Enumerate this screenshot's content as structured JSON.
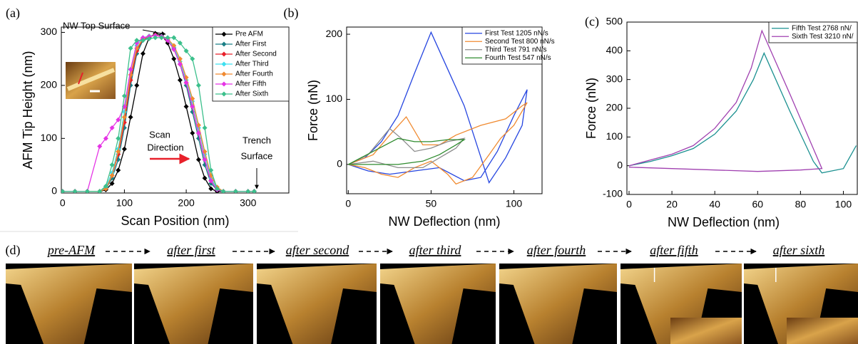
{
  "chart_data": [
    {
      "type": "line",
      "panel": "(a)",
      "xlabel": "Scan Position (nm)",
      "ylabel": "AFM Tip Height (nm)",
      "x": [
        0,
        20,
        40,
        60,
        70,
        80,
        90,
        100,
        110,
        120,
        130,
        140,
        150,
        160,
        170,
        180,
        190,
        200,
        210,
        220,
        230,
        240,
        250,
        260,
        280,
        300,
        310
      ],
      "series": [
        {
          "name": "Pre AFM",
          "color": "#000000",
          "values": [
            0,
            0,
            0,
            0,
            3,
            15,
            40,
            80,
            140,
            200,
            260,
            290,
            298,
            295,
            280,
            250,
            210,
            160,
            110,
            60,
            25,
            5,
            0,
            0,
            0,
            0,
            0
          ]
        },
        {
          "name": "After First",
          "color": "#1b7f86",
          "values": [
            0,
            0,
            0,
            0,
            5,
            25,
            60,
            120,
            200,
            260,
            285,
            292,
            295,
            293,
            288,
            270,
            240,
            200,
            150,
            100,
            50,
            15,
            3,
            0,
            0,
            0,
            0
          ]
        },
        {
          "name": "After Second",
          "color": "#e8202a",
          "values": [
            0,
            0,
            0,
            0,
            5,
            30,
            70,
            130,
            210,
            265,
            288,
            293,
            295,
            292,
            285,
            268,
            240,
            205,
            160,
            110,
            60,
            20,
            5,
            0,
            0,
            0,
            0
          ]
        },
        {
          "name": "After Third",
          "color": "#3fe0f0",
          "values": [
            0,
            0,
            0,
            0,
            8,
            35,
            80,
            150,
            230,
            275,
            290,
            293,
            294,
            292,
            287,
            272,
            245,
            210,
            170,
            120,
            70,
            25,
            5,
            0,
            0,
            0,
            0
          ]
        },
        {
          "name": "After Fourth",
          "color": "#f08a30",
          "values": [
            0,
            0,
            0,
            0,
            5,
            30,
            75,
            140,
            220,
            270,
            288,
            292,
            294,
            292,
            288,
            275,
            250,
            215,
            175,
            125,
            75,
            30,
            8,
            0,
            0,
            0,
            0
          ]
        },
        {
          "name": "After Fifth",
          "color": "#e533e5",
          "values": [
            0,
            0,
            0,
            85,
            100,
            120,
            135,
            160,
            230,
            280,
            290,
            292,
            294,
            292,
            285,
            268,
            240,
            205,
            160,
            110,
            60,
            20,
            3,
            0,
            0,
            0,
            0
          ]
        },
        {
          "name": "After Sixth",
          "color": "#3cc08c",
          "values": [
            0,
            0,
            0,
            0,
            10,
            50,
            100,
            180,
            270,
            285,
            285,
            288,
            290,
            290,
            290,
            290,
            280,
            265,
            250,
            200,
            120,
            40,
            5,
            0,
            0,
            0,
            0
          ]
        }
      ],
      "xlim": [
        -2,
        366
      ],
      "ylim": [
        -3,
        310
      ],
      "xticks": [
        0,
        100,
        200,
        300
      ],
      "yticks": [
        0,
        100,
        200,
        300
      ],
      "legend": "upper right",
      "markers": true,
      "annotations": [
        "NW Top Surface",
        "Scan",
        "Direction",
        "Trench",
        "Surface"
      ]
    },
    {
      "type": "line",
      "panel": "(b)",
      "xlabel": "NW Deflection (nm)",
      "ylabel": "Force (nN)",
      "series": [
        {
          "name": "First Test 1205 nN/s",
          "color": "#2545e0",
          "x": [
            0,
            10,
            20,
            30,
            40,
            50,
            70,
            85,
            95,
            105,
            108,
            100,
            90,
            80,
            70,
            55,
            40,
            25,
            12,
            0
          ],
          "values": [
            0,
            10,
            35,
            75,
            140,
            203,
            90,
            -28,
            10,
            60,
            115,
            75,
            20,
            -20,
            -25,
            -5,
            -10,
            -15,
            -10,
            0
          ]
        },
        {
          "name": "Second Test 800 nN/s",
          "color": "#f08a30",
          "x": [
            0,
            15,
            25,
            35,
            45,
            55,
            65,
            80,
            95,
            105,
            108,
            100,
            92,
            85,
            75,
            65,
            60,
            50,
            40,
            30,
            20,
            10,
            0
          ],
          "values": [
            0,
            15,
            45,
            73,
            30,
            30,
            45,
            60,
            70,
            90,
            95,
            60,
            40,
            15,
            -20,
            -30,
            -15,
            5,
            -5,
            -20,
            -15,
            -5,
            0
          ]
        },
        {
          "name": "Third Test 791 nN/s",
          "color": "#8c8c8c",
          "x": [
            0,
            12,
            25,
            32,
            40,
            50,
            60,
            70,
            65,
            55,
            45,
            30,
            15,
            0
          ],
          "values": [
            0,
            15,
            55,
            40,
            20,
            25,
            35,
            40,
            25,
            10,
            -5,
            -5,
            5,
            0
          ]
        },
        {
          "name": "Fourth Test 547 nN/s",
          "color": "#2e8b2e",
          "x": [
            0,
            15,
            30,
            40,
            50,
            60,
            70,
            65,
            55,
            45,
            30,
            15,
            0
          ],
          "values": [
            0,
            20,
            40,
            35,
            35,
            38,
            38,
            30,
            15,
            5,
            0,
            0,
            0
          ]
        }
      ],
      "xlim": [
        -1,
        117
      ],
      "ylim": [
        -45,
        211
      ],
      "xticks": [
        0,
        50,
        100
      ],
      "yticks": [
        0,
        100,
        200
      ],
      "legend": "upper right",
      "markers": false
    },
    {
      "type": "line",
      "panel": "(c)",
      "xlabel": "NW Deflection (nm)",
      "ylabel": "Force (nN)",
      "series": [
        {
          "name": "Fifth Test 2768 nN/",
          "color": "#1a9090",
          "x": [
            0,
            10,
            20,
            30,
            40,
            50,
            58,
            63,
            75,
            86,
            90,
            100,
            106
          ],
          "values": [
            0,
            15,
            35,
            60,
            110,
            190,
            300,
            392,
            190,
            15,
            -25,
            -10,
            70
          ]
        },
        {
          "name": "Sixth Test 3210 nN/",
          "color": "#a040b0",
          "x": [
            0,
            20,
            30,
            40,
            50,
            57,
            62,
            75,
            90,
            80,
            60,
            40,
            20,
            0
          ],
          "values": [
            0,
            40,
            70,
            130,
            220,
            340,
            470,
            250,
            -10,
            -15,
            -20,
            -15,
            -10,
            -5
          ]
        }
      ],
      "xlim": [
        -1,
        106.5
      ],
      "ylim": [
        -100,
        500
      ],
      "xticks": [
        0,
        20,
        40,
        60,
        80,
        100
      ],
      "yticks": [
        -100,
        0,
        100,
        200,
        300,
        400,
        500
      ],
      "legend": "upper right",
      "markers": false
    }
  ],
  "image_row": {
    "panel": "(d)",
    "captions": [
      "pre-AFM",
      "after first",
      "after second",
      "after third",
      "after fourth",
      "after fifth",
      "after sixth"
    ]
  }
}
